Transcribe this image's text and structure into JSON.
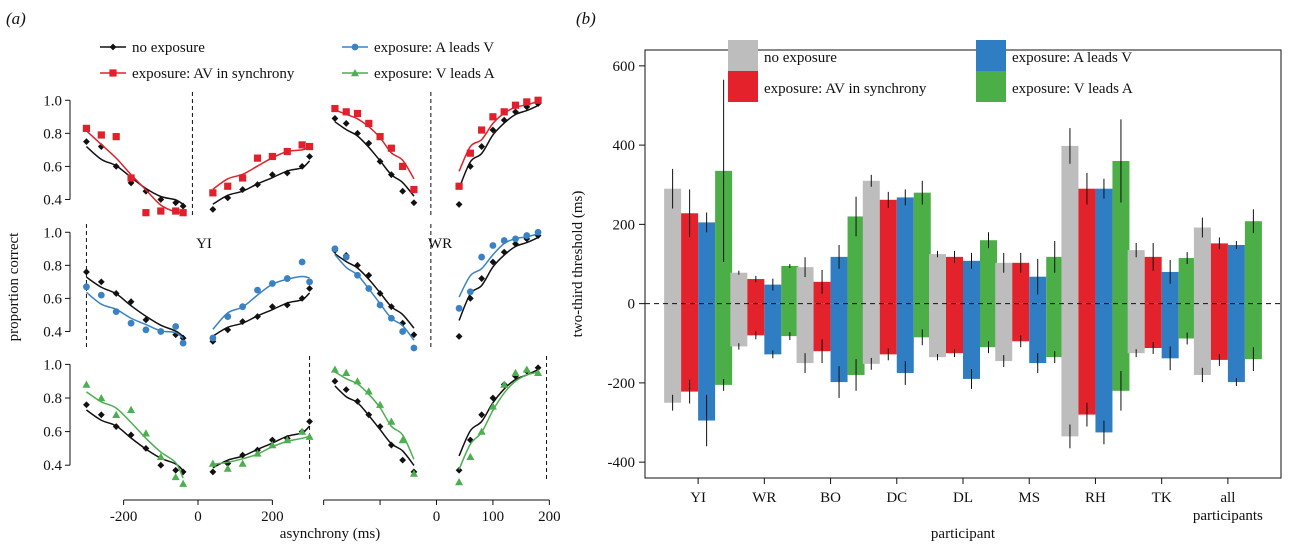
{
  "colors": {
    "none": "#111111",
    "sync": "#e0202b",
    "a_leads": "#3b82c4",
    "v_leads": "#4caf50",
    "bar_none": "#bdbdbd",
    "bar_sync": "#e3222c",
    "bar_a": "#2f7ec3",
    "bar_v": "#4cae47"
  },
  "chart_data": [
    {
      "id": "a",
      "panel_label": "(a)",
      "type": "scatter",
      "xlabel": "asynchrony (ms)",
      "ylabel": "proportion correct",
      "legend": [
        {
          "key": "none",
          "label": "no exposure",
          "marker": "diamond"
        },
        {
          "key": "sync",
          "label": "exposure: AV in synchrony",
          "marker": "square"
        },
        {
          "key": "a_leads",
          "label": "exposure: A leads V",
          "marker": "circle"
        },
        {
          "key": "v_leads",
          "label": "exposure: V leads A",
          "marker": "triangle"
        }
      ],
      "y_ticks": [
        0.4,
        0.6,
        0.8,
        1.0
      ],
      "y_tick_labels": [
        "0.4",
        "0.6",
        "0.8",
        "1.0"
      ],
      "subplots": [
        {
          "participant": "YI",
          "row": 0,
          "col": 0,
          "show_label": false,
          "xlim": [
            -320,
            320
          ],
          "ylim": [
            0.3,
            1.05
          ],
          "x_ticks": [
            -200,
            0,
            200
          ],
          "x_tick_labels": [],
          "dashed_x": -15,
          "series": [
            {
              "key": "none",
              "x": [
                -300,
                -260,
                -220,
                -180,
                -140,
                -100,
                -60,
                -40,
                40,
                80,
                120,
                160,
                200,
                240,
                280,
                300
              ],
              "y": [
                0.75,
                0.72,
                0.6,
                0.5,
                0.45,
                0.4,
                0.38,
                0.36,
                0.34,
                0.41,
                0.46,
                0.49,
                0.55,
                0.56,
                0.6,
                0.66
              ]
            },
            {
              "key": "sync",
              "x": [
                -300,
                -260,
                -220,
                -180,
                -140,
                -100,
                -60,
                -40,
                40,
                80,
                120,
                160,
                200,
                240,
                280,
                300
              ],
              "y": [
                0.83,
                0.79,
                0.78,
                0.53,
                0.32,
                0.33,
                0.33,
                0.32,
                0.44,
                0.48,
                0.53,
                0.65,
                0.66,
                0.69,
                0.73,
                0.72
              ]
            }
          ]
        },
        {
          "participant": "YI",
          "row": 1,
          "col": 0,
          "show_label": true,
          "xlim": [
            -320,
            320
          ],
          "ylim": [
            0.3,
            1.05
          ],
          "x_ticks": [
            -200,
            0,
            200
          ],
          "x_tick_labels": [],
          "dashed_x": -300,
          "series": [
            {
              "key": "none",
              "x": [
                -300,
                -260,
                -220,
                -180,
                -140,
                -100,
                -60,
                -40,
                40,
                80,
                120,
                160,
                200,
                240,
                280,
                300
              ],
              "y": [
                0.76,
                0.7,
                0.63,
                0.58,
                0.47,
                0.4,
                0.38,
                0.36,
                0.34,
                0.41,
                0.46,
                0.49,
                0.55,
                0.56,
                0.6,
                0.66
              ]
            },
            {
              "key": "a_leads",
              "x": [
                -300,
                -260,
                -220,
                -180,
                -140,
                -100,
                -60,
                -40,
                40,
                80,
                120,
                160,
                200,
                240,
                280,
                300
              ],
              "y": [
                0.67,
                0.62,
                0.52,
                0.45,
                0.41,
                0.4,
                0.43,
                0.33,
                0.36,
                0.49,
                0.55,
                0.65,
                0.69,
                0.72,
                0.82,
                0.7
              ]
            }
          ]
        },
        {
          "participant": "YI",
          "row": 2,
          "col": 0,
          "show_label": false,
          "xlim": [
            -320,
            320
          ],
          "ylim": [
            0.3,
            1.05
          ],
          "x_ticks": [
            -200,
            0,
            200
          ],
          "x_tick_labels": [
            "-200",
            "0",
            "200"
          ],
          "dashed_x": 300,
          "series": [
            {
              "key": "none",
              "x": [
                -300,
                -260,
                -220,
                -180,
                -140,
                -100,
                -60,
                -40,
                40,
                80,
                120,
                160,
                200,
                240,
                280,
                300
              ],
              "y": [
                0.76,
                0.7,
                0.63,
                0.58,
                0.5,
                0.4,
                0.37,
                0.36,
                0.36,
                0.41,
                0.46,
                0.49,
                0.55,
                0.56,
                0.6,
                0.66
              ]
            },
            {
              "key": "v_leads",
              "x": [
                -300,
                -260,
                -220,
                -180,
                -140,
                -100,
                -60,
                -40,
                40,
                80,
                120,
                160,
                200,
                240,
                280,
                300
              ],
              "y": [
                0.88,
                0.8,
                0.7,
                0.73,
                0.59,
                0.45,
                0.33,
                0.29,
                0.41,
                0.38,
                0.41,
                0.47,
                0.52,
                0.55,
                0.6,
                0.57
              ]
            }
          ]
        },
        {
          "participant": "WR",
          "row": 0,
          "col": 1,
          "show_label": false,
          "xlim": [
            -210,
            210
          ],
          "ylim": [
            0.3,
            1.05
          ],
          "x_ticks": [
            -200,
            -100,
            0,
            100,
            200
          ],
          "x_tick_labels": [],
          "dashed_x": -10,
          "series": [
            {
              "key": "none",
              "x": [
                -180,
                -160,
                -140,
                -120,
                -100,
                -80,
                -60,
                -40,
                40,
                60,
                80,
                100,
                120,
                140,
                160,
                180
              ],
              "y": [
                0.89,
                0.86,
                0.8,
                0.74,
                0.63,
                0.55,
                0.45,
                0.38,
                0.37,
                0.6,
                0.72,
                0.82,
                0.88,
                0.93,
                0.96,
                0.98
              ]
            },
            {
              "key": "sync",
              "x": [
                -180,
                -160,
                -140,
                -120,
                -100,
                -80,
                -60,
                -40,
                40,
                60,
                80,
                100,
                120,
                140,
                160,
                180
              ],
              "y": [
                0.95,
                0.93,
                0.92,
                0.86,
                0.78,
                0.71,
                0.6,
                0.46,
                0.48,
                0.68,
                0.82,
                0.9,
                0.93,
                0.97,
                0.99,
                1.0
              ]
            }
          ]
        },
        {
          "participant": "WR",
          "row": 1,
          "col": 1,
          "show_label": true,
          "xlim": [
            -210,
            210
          ],
          "ylim": [
            0.3,
            1.05
          ],
          "x_ticks": [
            -200,
            -100,
            0,
            100,
            200
          ],
          "x_tick_labels": [],
          "dashed_x": -10,
          "series": [
            {
              "key": "none",
              "x": [
                -180,
                -160,
                -140,
                -120,
                -100,
                -80,
                -60,
                -40,
                40,
                60,
                80,
                100,
                120,
                140,
                160,
                180
              ],
              "y": [
                0.89,
                0.86,
                0.8,
                0.74,
                0.63,
                0.55,
                0.45,
                0.38,
                0.37,
                0.6,
                0.72,
                0.82,
                0.88,
                0.93,
                0.96,
                0.98
              ]
            },
            {
              "key": "a_leads",
              "x": [
                -180,
                -160,
                -140,
                -120,
                -100,
                -80,
                -60,
                -40,
                40,
                60,
                80,
                100,
                120,
                140,
                160,
                180
              ],
              "y": [
                0.9,
                0.85,
                0.74,
                0.66,
                0.56,
                0.48,
                0.4,
                0.3,
                0.54,
                0.64,
                0.85,
                0.92,
                0.95,
                0.96,
                0.98,
                1.0
              ]
            }
          ]
        },
        {
          "participant": "WR",
          "row": 2,
          "col": 1,
          "show_label": false,
          "xlim": [
            -210,
            210
          ],
          "ylim": [
            0.3,
            1.05
          ],
          "x_ticks": [
            -200,
            -100,
            0,
            100,
            200
          ],
          "x_tick_labels": [
            "",
            "",
            "0",
            "100",
            "200"
          ],
          "dashed_x": 195,
          "series": [
            {
              "key": "none",
              "x": [
                -180,
                -160,
                -140,
                -120,
                -100,
                -80,
                -60,
                -40,
                40,
                60,
                80,
                100,
                120,
                140,
                160,
                180
              ],
              "y": [
                0.9,
                0.85,
                0.78,
                0.7,
                0.63,
                0.52,
                0.43,
                0.36,
                0.37,
                0.55,
                0.7,
                0.8,
                0.88,
                0.93,
                0.96,
                0.98
              ]
            },
            {
              "key": "v_leads",
              "x": [
                -180,
                -160,
                -140,
                -120,
                -100,
                -80,
                -60,
                -40,
                40,
                60,
                80,
                100,
                120,
                140,
                160,
                180
              ],
              "y": [
                0.97,
                0.95,
                0.9,
                0.84,
                0.76,
                0.66,
                0.55,
                0.35,
                0.3,
                0.45,
                0.6,
                0.75,
                0.88,
                0.95,
                0.97,
                0.95
              ]
            }
          ]
        }
      ]
    },
    {
      "id": "b",
      "panel_label": "(b)",
      "type": "bar",
      "xlabel": "participant",
      "ylabel": "two-third threshold (ms)",
      "ylim": [
        -440,
        640
      ],
      "y_ticks": [
        -400,
        -200,
        0,
        200,
        400,
        600
      ],
      "y_tick_labels": [
        "-400",
        "-200",
        "0",
        "200",
        "400",
        "600"
      ],
      "categories": [
        "YI",
        "WR",
        "BO",
        "DC",
        "DL",
        "MS",
        "RH",
        "TK",
        "all participants"
      ],
      "category_lines": [
        [
          "YI"
        ],
        [
          "WR"
        ],
        [
          "BO"
        ],
        [
          "DC"
        ],
        [
          "DL"
        ],
        [
          "MS"
        ],
        [
          "RH"
        ],
        [
          "TK"
        ],
        [
          "all",
          "participants"
        ]
      ],
      "legend": [
        {
          "key": "bar_none",
          "label": "no exposure"
        },
        {
          "key": "bar_sync",
          "label": "exposure: AV in synchrony"
        },
        {
          "key": "bar_a",
          "label": "exposure: A leads V"
        },
        {
          "key": "bar_v",
          "label": "exposure: V leads A"
        }
      ],
      "series": [
        {
          "key": "bar_none",
          "pos": [
            290,
            78,
            92,
            310,
            125,
            103,
            398,
            135,
            192
          ],
          "pos_err": [
            50,
            5,
            25,
            15,
            8,
            25,
            45,
            18,
            25
          ],
          "neg": [
            -250,
            -108,
            -150,
            -152,
            -135,
            -145,
            -335,
            -125,
            -180
          ],
          "neg_err": [
            20,
            8,
            25,
            15,
            8,
            15,
            30,
            10,
            18
          ]
        },
        {
          "key": "bar_sync",
          "pos": [
            228,
            62,
            55,
            262,
            118,
            103,
            290,
            118,
            152
          ],
          "pos_err": [
            60,
            8,
            30,
            20,
            15,
            25,
            40,
            35,
            15
          ],
          "neg": [
            -222,
            -80,
            -120,
            -128,
            -125,
            -95,
            -280,
            -112,
            -142
          ],
          "neg_err": [
            30,
            10,
            30,
            15,
            10,
            15,
            30,
            15,
            15
          ]
        },
        {
          "key": "bar_a",
          "pos": [
            205,
            48,
            118,
            268,
            108,
            68,
            290,
            80,
            148
          ],
          "pos_err": [
            25,
            15,
            30,
            20,
            20,
            45,
            25,
            30,
            10
          ],
          "neg": [
            -295,
            -128,
            -198,
            -175,
            -190,
            -150,
            -325,
            -138,
            -198
          ],
          "neg_err": [
            65,
            10,
            40,
            30,
            25,
            25,
            30,
            30,
            10
          ]
        },
        {
          "key": "bar_v",
          "pos": [
            335,
            95,
            220,
            280,
            160,
            118,
            360,
            115,
            208
          ],
          "pos_err": [
            230,
            5,
            50,
            30,
            20,
            40,
            105,
            15,
            30
          ],
          "neg": [
            -205,
            -82,
            -180,
            -85,
            -110,
            -135,
            -220,
            -88,
            -140
          ],
          "neg_err": [
            15,
            10,
            40,
            20,
            15,
            15,
            50,
            15,
            30
          ]
        }
      ]
    }
  ]
}
